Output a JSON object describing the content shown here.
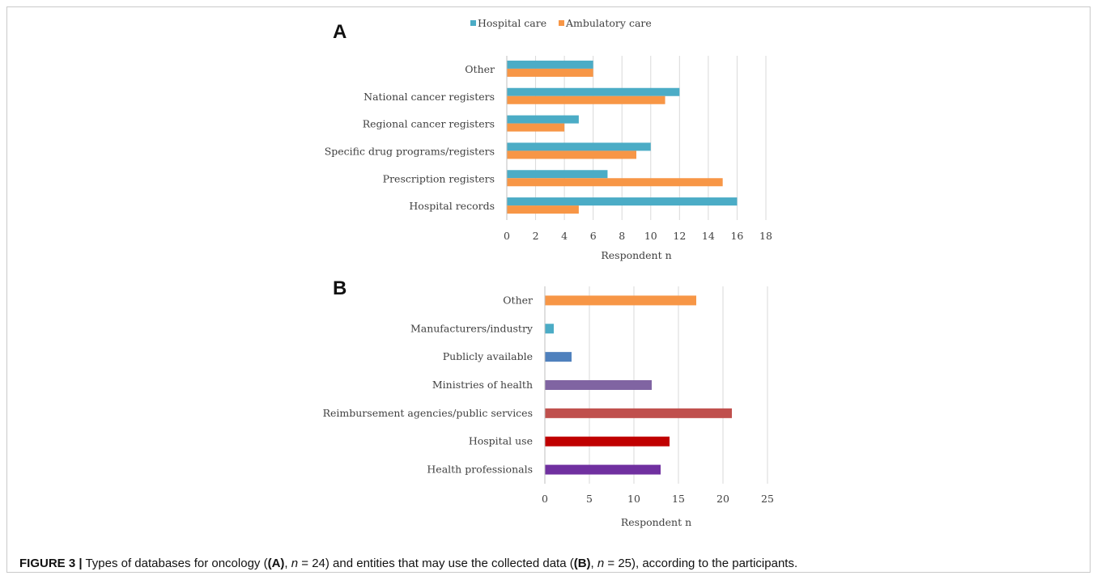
{
  "caption": {
    "figure_label": "FIGURE 3 |",
    "p1": " Types of databases for oncology (",
    "a_label": "(A)",
    "p2": ", ",
    "n_symbol": "n",
    "p3": " = 24) and entities that may use the collected data (",
    "b_label": "(B)",
    "p4": ", ",
    "p5": " = 25), according to the participants."
  },
  "chart_data": [
    {
      "panel": "A",
      "type": "bar",
      "orientation": "horizontal",
      "categories": [
        "Other",
        "National cancer registers",
        "Regional cancer registers",
        "Specific drug programs/registers",
        "Prescription registers",
        "Hospital records"
      ],
      "series": [
        {
          "name": "Hospital care",
          "color": "#4bacc6",
          "values": [
            6,
            12,
            5,
            10,
            7,
            16
          ]
        },
        {
          "name": "Ambulatory care",
          "color": "#f79646",
          "values": [
            6,
            11,
            4,
            9,
            15,
            5
          ]
        }
      ],
      "xticks": [
        "0",
        "2",
        "4",
        "6",
        "8",
        "10",
        "12",
        "14",
        "16",
        "18"
      ],
      "xlim": [
        0,
        18
      ],
      "xlabel": "Respondent n",
      "grid": true,
      "legend": "top"
    },
    {
      "panel": "B",
      "type": "bar",
      "orientation": "horizontal",
      "categories": [
        "Other",
        "Manufacturers/industry",
        "Publicly available",
        "Ministries of health",
        "Reimbursement agencies/public services",
        "Hospital use",
        "Health professionals"
      ],
      "values": [
        17,
        1,
        3,
        12,
        21,
        14,
        13
      ],
      "colors": [
        "#f79646",
        "#4bacc6",
        "#4f81bd",
        "#8064a2",
        "#c0504d",
        "#c00000",
        "#7030a0"
      ],
      "xticks": [
        "0",
        "5",
        "10",
        "15",
        "20",
        "25"
      ],
      "xlim": [
        0,
        25
      ],
      "xlabel": "Respondent n",
      "grid": true
    }
  ]
}
